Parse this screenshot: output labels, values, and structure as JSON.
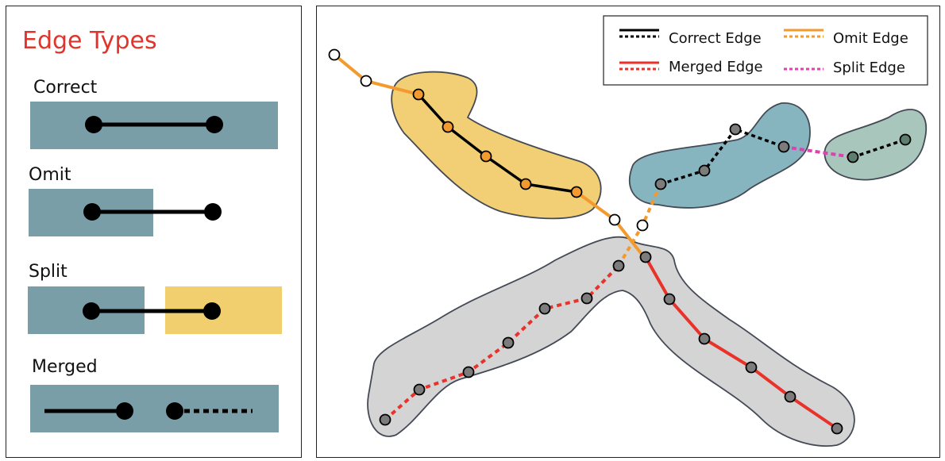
{
  "left": {
    "title": "Edge Types",
    "types": [
      {
        "label": "Correct"
      },
      {
        "label": "Omit"
      },
      {
        "label": "Split"
      },
      {
        "label": "Merged"
      }
    ]
  },
  "legend": {
    "correct": "Correct Edge",
    "omit": "Omit Edge",
    "merged": "Merged Edge",
    "split": "Split Edge"
  },
  "colors": {
    "title": "#e0342c",
    "blue_box": "#7a9ea8",
    "yellow_box": "#f2cf6e",
    "orange": "#f39a2e",
    "red": "#e8322a",
    "magenta": "#e040b0",
    "black": "#000000",
    "yellow_region": "#f2cf75",
    "blue_region": "#86b5c0",
    "green_region": "#a9c6bc",
    "gray_region": "#d4d4d4"
  }
}
